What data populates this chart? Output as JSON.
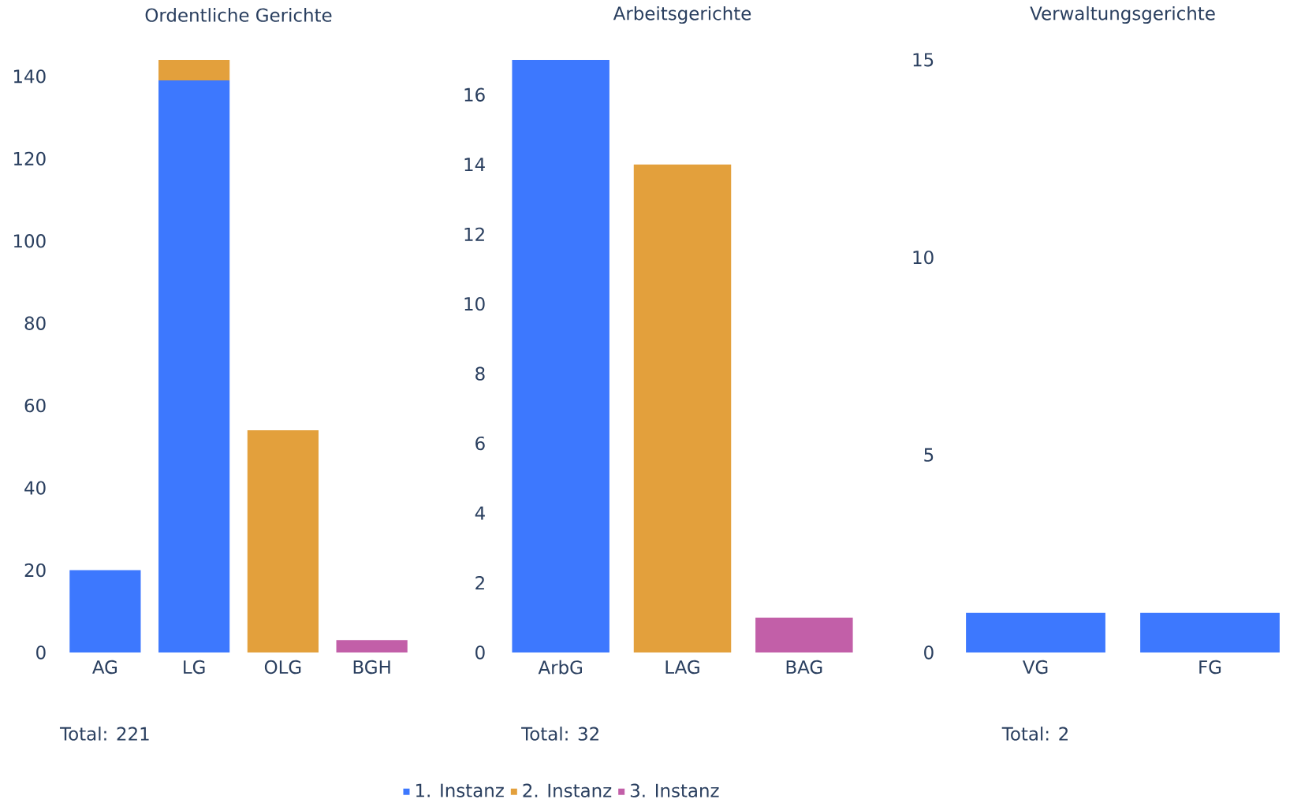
{
  "chart_data": [
    {
      "type": "bar",
      "title": "Ordentliche Gerichte",
      "stacked": true,
      "categories": [
        "AG",
        "LG",
        "OLG",
        "BGH"
      ],
      "series": [
        {
          "color": "#3d78fe",
          "values": [
            20,
            139,
            null,
            null
          ]
        },
        {
          "color": "#e3a03c",
          "values": [
            null,
            5,
            54,
            null
          ]
        },
        {
          "color": "#c25fa8",
          "values": [
            null,
            null,
            null,
            3
          ]
        }
      ],
      "ylim": [
        0,
        144
      ],
      "yticks": [
        0,
        20,
        40,
        60,
        80,
        100,
        120,
        140
      ],
      "annotations": [
        "Total: 221"
      ]
    },
    {
      "type": "bar",
      "title": "Arbeitsgerichte",
      "stacked": true,
      "categories": [
        "ArbG",
        "LAG",
        "BAG"
      ],
      "series": [
        {
          "name": "1. Instanz",
          "color": "#3d78fe",
          "values": [
            17,
            null,
            null
          ]
        },
        {
          "name": "2. Instanz",
          "color": "#e3a03c",
          "values": [
            null,
            14,
            null
          ]
        },
        {
          "name": "3. Instanz",
          "color": "#c25fa8",
          "values": [
            null,
            null,
            1
          ]
        }
      ],
      "ylim": [
        0,
        17
      ],
      "yticks": [
        0,
        2,
        4,
        6,
        8,
        10,
        12,
        14,
        16
      ],
      "annotations": [
        "Total: 32"
      ],
      "legend": "bottom"
    },
    {
      "type": "bar",
      "title": "Verwaltungsgerichte",
      "stacked": true,
      "categories": [
        "VG",
        "FG"
      ],
      "series": [
        {
          "color": "#3d78fe",
          "values": [
            1,
            1
          ]
        }
      ],
      "ylim": [
        0,
        15
      ],
      "yticks": [
        0,
        5,
        10,
        15
      ],
      "annotations": [
        "Total: 2"
      ]
    }
  ]
}
